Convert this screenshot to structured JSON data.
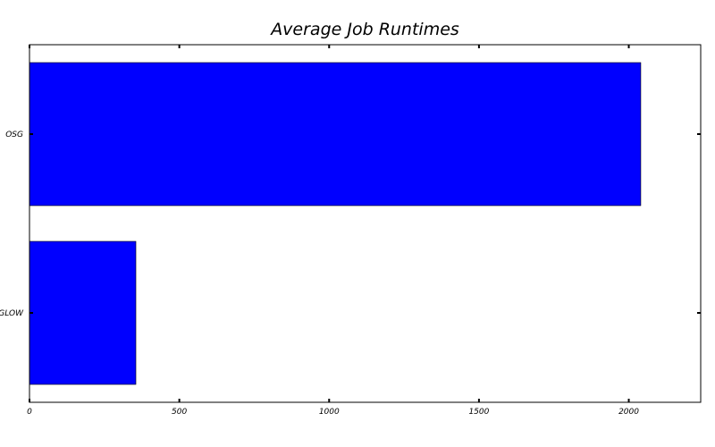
{
  "chart_data": {
    "type": "bar",
    "orientation": "horizontal",
    "title": "Average Job Runtimes",
    "xlabel": "",
    "ylabel": "",
    "categories": [
      "OSG",
      "GLOW"
    ],
    "values": [
      2040,
      355
    ],
    "xlim": [
      0,
      2240
    ],
    "xticks": [
      "0",
      "500",
      "1000",
      "1500",
      "2000"
    ],
    "xtick_values": [
      0,
      500,
      1000,
      1500,
      2000
    ],
    "bar_color": "#0000ff",
    "grid": false,
    "legend": "none"
  }
}
